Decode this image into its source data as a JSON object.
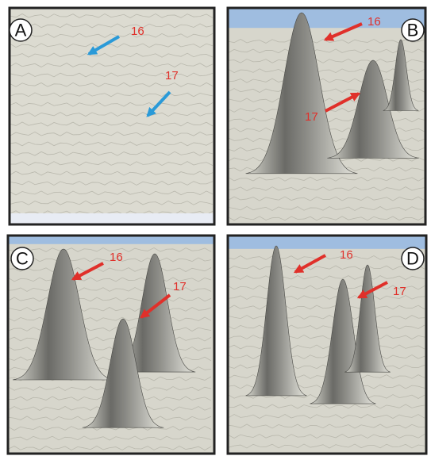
{
  "panels": [
    {
      "letter": "A",
      "labels": [
        "16",
        "17"
      ]
    },
    {
      "letter": "B",
      "labels": [
        "16",
        "17"
      ]
    },
    {
      "letter": "C",
      "labels": [
        "16",
        "17"
      ]
    },
    {
      "letter": "D",
      "labels": [
        "16",
        "17"
      ]
    }
  ]
}
